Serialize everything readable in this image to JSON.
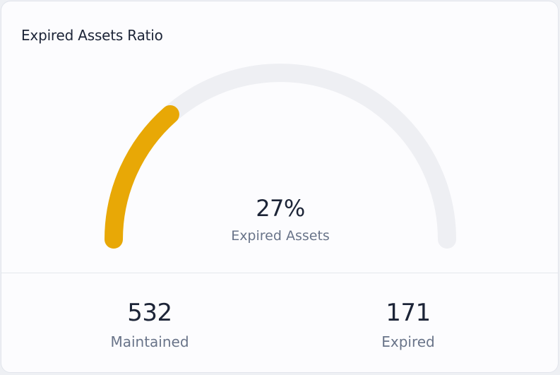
{
  "card": {
    "title": "Expired Assets Ratio"
  },
  "gauge": {
    "value_text": "27%",
    "label": "Expired Assets",
    "fraction": 0.27,
    "track_color": "#eeeff3",
    "fill_color": "#e8a806"
  },
  "stats": {
    "maintained": {
      "value": "532",
      "label": "Maintained"
    },
    "expired": {
      "value": "171",
      "label": "Expired"
    }
  }
}
